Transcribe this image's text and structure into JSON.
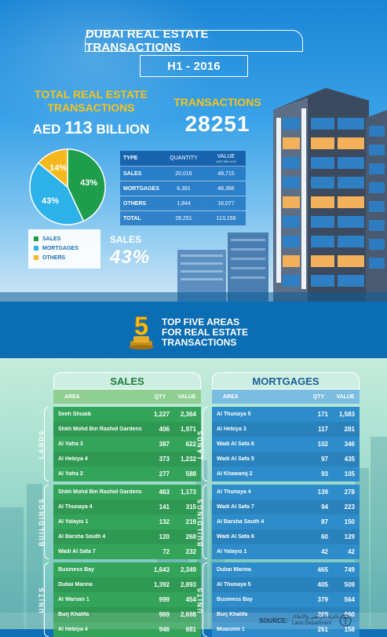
{
  "title": {
    "line1": "DUBAI REAL ESTATE TRANSACTIONS",
    "line2": "H1 - 2016"
  },
  "totals": {
    "label_line1": "TOTAL REAL ESTATE",
    "label_line2": "TRANSACTIONS",
    "currency": "AED",
    "amount": "113",
    "unit": "BILLION"
  },
  "transactions": {
    "label": "TRANSACTIONS",
    "value": "28251"
  },
  "highlight": {
    "label": "SALES",
    "value": "43%"
  },
  "colors": {
    "sales": "#1e9d4a",
    "mortgages": "#2cb1e9",
    "others": "#f6b91d",
    "gold": "#f7c21a"
  },
  "top5": {
    "number": "5",
    "line1": "TOP FIVE AREAS",
    "line2": "FOR REAL ESTATE",
    "line3": "TRANSACTIONS"
  },
  "source": {
    "label": "SOURCE:",
    "dept_ar": "دائرة الأراضي والأملاك",
    "dept_en": "Land Department"
  },
  "chart_data": [
    {
      "type": "pie",
      "categories": [
        "SALES",
        "MORTGAGES",
        "OTHERS"
      ],
      "values": [
        43,
        43,
        14
      ],
      "labels": [
        "43%",
        "43%",
        "14%"
      ],
      "legend": "bottom-left"
    },
    {
      "type": "table",
      "columns": [
        "TYPE",
        "QUANTITY",
        "VALUE"
      ],
      "value_unit": "AED MILLION",
      "rows": [
        [
          "SALES",
          "20,016",
          "48,715"
        ],
        [
          "MORTGAGES",
          "6,391",
          "48,366"
        ],
        [
          "OTHERS",
          "1,844",
          "16,077"
        ],
        [
          "TOTAL",
          "28,251",
          "113,158"
        ]
      ]
    },
    {
      "type": "table",
      "title": "SALES",
      "columns": [
        "AREA",
        "QTY",
        "VALUE"
      ],
      "groups": [
        {
          "name": "LANDS",
          "rows": [
            [
              "Seeh Shuaib",
              "1,227",
              "2,364"
            ],
            [
              "Shkh Mohd Bin Rashid Gardens",
              "406",
              "1,971"
            ],
            [
              "Al Yafra 3",
              "387",
              "622"
            ],
            [
              "Al Hebiya 4",
              "373",
              "1,232"
            ],
            [
              "Al Yafra 2",
              "277",
              "588"
            ]
          ]
        },
        {
          "name": "BUILDINGS",
          "rows": [
            [
              "Shkh Mohd Bin Rashid Gardens",
              "463",
              "1,173"
            ],
            [
              "Al Thunaya 4",
              "141",
              "315"
            ],
            [
              "Al Yalayis 1",
              "132",
              "219"
            ],
            [
              "Al Barsha South 4",
              "120",
              "268"
            ],
            [
              "Wadi Al Safa 7",
              "72",
              "232"
            ]
          ]
        },
        {
          "name": "UNITS",
          "rows": [
            [
              "Business Bay",
              "1,643",
              "2,349"
            ],
            [
              "Dubai Marina",
              "1,392",
              "2,893"
            ],
            [
              "Al Warsan 1",
              "999",
              "454"
            ],
            [
              "Burj Khalifa",
              "969",
              "2,698"
            ],
            [
              "Al Hebiya 4",
              "946",
              "681"
            ]
          ]
        }
      ]
    },
    {
      "type": "table",
      "title": "MORTGAGES",
      "columns": [
        "AREA",
        "QTY",
        "VALUE"
      ],
      "groups": [
        {
          "name": "LANDS",
          "rows": [
            [
              "Al Thunaya 5",
              "171",
              "1,583"
            ],
            [
              "Al Hebiya 3",
              "117",
              "281"
            ],
            [
              "Wadi Al Safa 6",
              "102",
              "346"
            ],
            [
              "Wadi Al Safa 5",
              "97",
              "435"
            ],
            [
              "Al Khawanij 2",
              "93",
              "105"
            ]
          ]
        },
        {
          "name": "BUILDINGS",
          "rows": [
            [
              "Al Thunaya 4",
              "139",
              "278"
            ],
            [
              "Wadi Al Safa 7",
              "94",
              "223"
            ],
            [
              "Al Barsha South 4",
              "87",
              "150"
            ],
            [
              "Wadi Al Safa 6",
              "60",
              "129"
            ],
            [
              "Al Yalayis 1",
              "42",
              "42"
            ]
          ]
        },
        {
          "name": "UNITS",
          "rows": [
            [
              "Dubai Marina",
              "465",
              "749"
            ],
            [
              "Al Thunaya 5",
              "405",
              "509"
            ],
            [
              "Business Bay",
              "379",
              "564"
            ],
            [
              "Burj Khalifa",
              "269",
              "660"
            ],
            [
              "Muaisem 1",
              "261",
              "158"
            ]
          ]
        }
      ]
    }
  ]
}
